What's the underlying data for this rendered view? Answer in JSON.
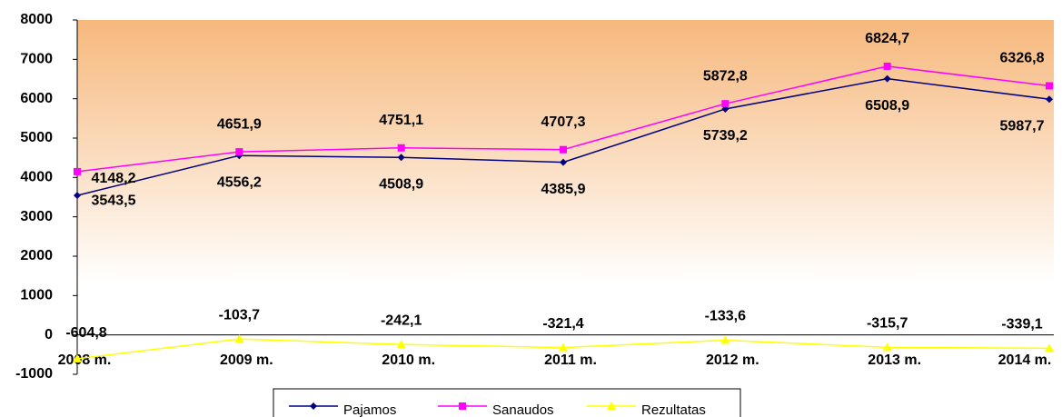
{
  "chart_data": {
    "type": "line",
    "categories": [
      "2008 m.",
      "2009 m.",
      "2010 m.",
      "2011 m.",
      "2012 m.",
      "2013 m.",
      "2014 m."
    ],
    "series": [
      {
        "name": "Pajamos",
        "color": "#000080",
        "marker": "diamond",
        "values": [
          3543.5,
          4556.2,
          4508.9,
          4385.9,
          5739.2,
          6508.9,
          5987.7
        ],
        "value_labels": [
          "3543,5",
          "4556,2",
          "4508,9",
          "4385,9",
          "5739,2",
          "6508,9",
          "5987,7"
        ]
      },
      {
        "name": "Sanaudos",
        "color": "#ff00ff",
        "marker": "square",
        "values": [
          4148.2,
          4651.9,
          4751.1,
          4707.3,
          5872.8,
          6824.7,
          6326.8
        ],
        "value_labels": [
          "4148,2",
          "4651,9",
          "4751,1",
          "4707,3",
          "5872,8",
          "6824,7",
          "6326,8"
        ]
      },
      {
        "name": "Rezultatas",
        "color": "#ffff00",
        "marker": "triangle",
        "values": [
          -604.8,
          -103.7,
          -242.1,
          -321.4,
          -133.6,
          -315.7,
          -339.1
        ],
        "value_labels": [
          "-604,8",
          "-103,7",
          "-242,1",
          "-321,4",
          "-133,6",
          "-315,7",
          "-339,1"
        ]
      }
    ],
    "ylim": [
      -1000,
      8000
    ],
    "yticks": [
      -1000,
      0,
      1000,
      2000,
      3000,
      4000,
      5000,
      6000,
      7000,
      8000
    ],
    "legend": "bottom"
  }
}
